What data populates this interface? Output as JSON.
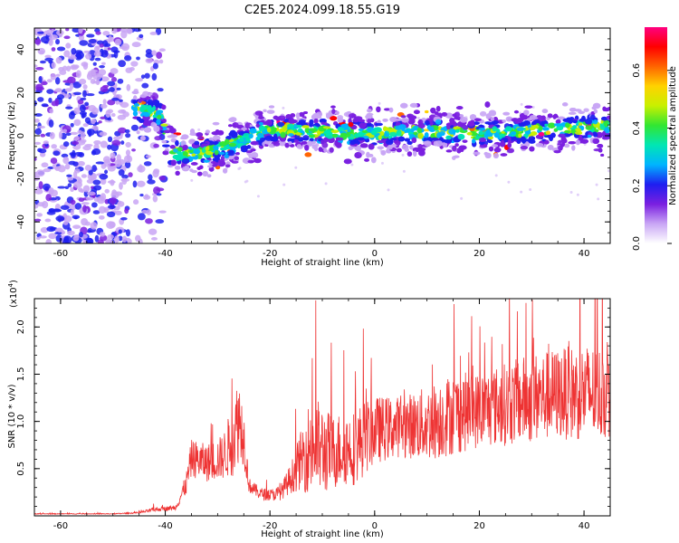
{
  "figure": {
    "title": "C2E5.2024.099.18.55.G19"
  },
  "chart_data": [
    {
      "type": "heatmap",
      "xlabel": "Height of straight line (km)",
      "ylabel": "Frequency (Hz)",
      "xlim": [
        -65,
        45
      ],
      "ylim": [
        -50,
        50
      ],
      "x_ticks": [
        -60,
        -40,
        -20,
        0,
        20,
        40
      ],
      "y_ticks": [
        -40,
        -20,
        0,
        20,
        40
      ],
      "grid": false,
      "colorbar": {
        "label": "Normalized spectral amplitude",
        "range": [
          0,
          0.75
        ],
        "ticks": [
          "0.0",
          "0.2",
          "0.4",
          "0.6"
        ],
        "colors": [
          "#ffffff",
          "#c9a6f5",
          "#7a1fe0",
          "#1e1ef0",
          "#00b4ff",
          "#00e6b4",
          "#32e632",
          "#c8f000",
          "#ffd200",
          "#ff6400",
          "#ff0000",
          "#ff0080"
        ]
      },
      "signal_band": {
        "description_x": [
          -65,
          -45,
          -41,
          -39,
          -35,
          -30,
          -25,
          -20,
          -10,
          0,
          10,
          20,
          30,
          40,
          45
        ],
        "center_frequency": [
          0,
          12,
          10,
          -8,
          -9,
          -6,
          -2,
          3,
          2,
          1,
          2,
          1,
          2,
          4,
          4
        ]
      }
    },
    {
      "type": "line",
      "xlabel": "Height of straight line (km)",
      "ylabel": "SNR (10 * v/v)",
      "y_multiplier": "(x10",
      "y_multiplier_exp": "4",
      "y_multiplier_close": ")",
      "xlim": [
        -65,
        45
      ],
      "ylim": [
        0,
        2.3
      ],
      "x_ticks": [
        -60,
        -40,
        -20,
        0,
        20,
        40
      ],
      "y_ticks": [
        "0.5",
        "1.0",
        "1.5",
        "2.0"
      ],
      "color": "#ee3333",
      "envelope": {
        "x": [
          -65,
          -50,
          -45,
          -42,
          -38,
          -36,
          -35,
          -32,
          -29,
          -27,
          -26,
          -25,
          -24,
          -22,
          -20,
          -18,
          -16,
          -14,
          -12,
          -10,
          -8,
          -6,
          -4,
          -2,
          0,
          5,
          10,
          15,
          20,
          25,
          30,
          35,
          40,
          45
        ],
        "base": [
          0.02,
          0.02,
          0.03,
          0.06,
          0.08,
          0.3,
          0.55,
          0.5,
          0.55,
          0.7,
          0.9,
          0.75,
          0.3,
          0.22,
          0.2,
          0.22,
          0.35,
          0.5,
          0.6,
          0.55,
          0.55,
          0.6,
          0.6,
          0.7,
          0.8,
          0.85,
          0.85,
          0.95,
          1.0,
          1.05,
          1.1,
          1.15,
          1.15,
          1.15
        ],
        "amplitude": [
          0.005,
          0.005,
          0.01,
          0.03,
          0.03,
          0.15,
          0.25,
          0.25,
          0.3,
          0.5,
          0.6,
          0.4,
          0.1,
          0.08,
          0.08,
          0.1,
          0.2,
          0.4,
          0.7,
          0.6,
          0.5,
          0.5,
          0.5,
          0.5,
          0.45,
          0.4,
          0.5,
          0.55,
          0.5,
          0.55,
          0.6,
          0.6,
          0.65,
          0.6
        ]
      }
    }
  ]
}
